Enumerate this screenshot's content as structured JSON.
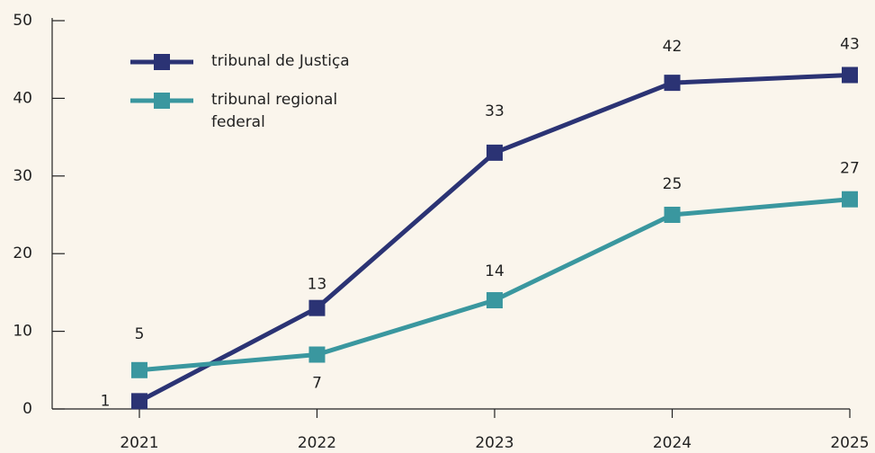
{
  "chart_data": {
    "type": "line",
    "categories": [
      "2021",
      "2022",
      "2023",
      "2024",
      "2025"
    ],
    "series": [
      {
        "name": "tribunal de Justiça",
        "color": "#2b3374",
        "values": [
          1,
          13,
          33,
          42,
          43
        ]
      },
      {
        "name": "tribunal regional federal",
        "color": "#3a979f",
        "values": [
          5,
          7,
          14,
          25,
          27
        ]
      }
    ],
    "ylim": [
      0,
      50
    ],
    "yticks": [
      0,
      10,
      20,
      30,
      40,
      50
    ],
    "grid": false,
    "legend": "upper left"
  }
}
